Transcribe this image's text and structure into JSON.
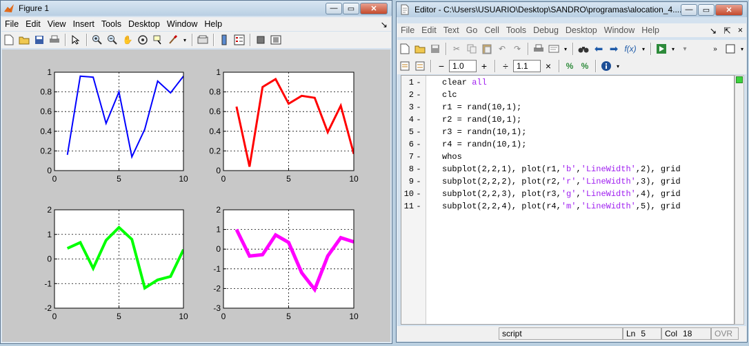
{
  "figure": {
    "title": "Figure 1",
    "menu": [
      "File",
      "Edit",
      "View",
      "Insert",
      "Tools",
      "Desktop",
      "Window",
      "Help"
    ],
    "dock_arrow": "↘"
  },
  "editor": {
    "title": "Editor - C:\\Users\\USUARIO\\Desktop\\SANDRO\\programas\\alocation_4....",
    "menu": [
      "File",
      "Edit",
      "Text",
      "Go",
      "Cell",
      "Tools",
      "Debug",
      "Desktop",
      "Window",
      "Help"
    ],
    "dock_arrow": "↘",
    "cell_value_1": "1.0",
    "cell_value_2": "1.1",
    "minus": "−",
    "plus": "+",
    "divide": "÷",
    "times": "×",
    "status": {
      "type": "script",
      "ln_label": "Ln",
      "ln": "5",
      "col_label": "Col",
      "col": "18",
      "ovr": "OVR"
    },
    "lines": [
      [
        {
          "t": "clear "
        },
        {
          "t": "all",
          "c": "str"
        }
      ],
      [
        {
          "t": "clc"
        }
      ],
      [
        {
          "t": "r1 = rand(10,1);"
        }
      ],
      [
        {
          "t": "r2 = rand(10,1);"
        }
      ],
      [
        {
          "t": "r3 = randn(10,1);"
        }
      ],
      [
        {
          "t": "r4 = randn(10,1);"
        }
      ],
      [
        {
          "t": "whos"
        }
      ],
      [
        {
          "t": "subplot(2,2,1), plot(r1,"
        },
        {
          "t": "'b'",
          "c": "str"
        },
        {
          "t": ","
        },
        {
          "t": "'LineWidth'",
          "c": "str"
        },
        {
          "t": ",2), grid"
        }
      ],
      [
        {
          "t": "subplot(2,2,2), plot(r2,"
        },
        {
          "t": "'r'",
          "c": "str"
        },
        {
          "t": ","
        },
        {
          "t": "'LineWidth'",
          "c": "str"
        },
        {
          "t": ",3), grid"
        }
      ],
      [
        {
          "t": "subplot(2,2,3), plot(r3,"
        },
        {
          "t": "'g'",
          "c": "str"
        },
        {
          "t": ","
        },
        {
          "t": "'LineWidth'",
          "c": "str"
        },
        {
          "t": ",4), grid"
        }
      ],
      [
        {
          "t": "subplot(2,2,4), plot(r4,"
        },
        {
          "t": "'m'",
          "c": "str"
        },
        {
          "t": ","
        },
        {
          "t": "'LineWidth'",
          "c": "str"
        },
        {
          "t": ",5), grid"
        }
      ]
    ]
  },
  "chart_data": [
    {
      "type": "line",
      "color": "#0000ff",
      "x": [
        1,
        2,
        3,
        4,
        5,
        6,
        7,
        8,
        9,
        10
      ],
      "values": [
        0.16,
        0.96,
        0.95,
        0.48,
        0.8,
        0.14,
        0.42,
        0.91,
        0.79,
        0.96
      ],
      "xlim": [
        0,
        10
      ],
      "ylim": [
        0,
        1
      ],
      "xticks": [
        "0",
        "5",
        "10"
      ],
      "yticks": [
        "0",
        "0.2",
        "0.4",
        "0.6",
        "0.8",
        "1"
      ],
      "grid": true,
      "linewidth": 2
    },
    {
      "type": "line",
      "color": "#ff0000",
      "x": [
        1,
        2,
        3,
        4,
        5,
        6,
        7,
        8,
        9,
        10
      ],
      "values": [
        0.65,
        0.04,
        0.85,
        0.93,
        0.68,
        0.76,
        0.74,
        0.39,
        0.66,
        0.17
      ],
      "xlim": [
        0,
        10
      ],
      "ylim": [
        0,
        1
      ],
      "xticks": [
        "0",
        "5",
        "10"
      ],
      "yticks": [
        "0",
        "0.2",
        "0.4",
        "0.6",
        "0.8",
        "1"
      ],
      "grid": true,
      "linewidth": 3
    },
    {
      "type": "line",
      "color": "#00ff00",
      "x": [
        1,
        2,
        3,
        4,
        5,
        6,
        7,
        8,
        9,
        10
      ],
      "values": [
        0.43,
        0.67,
        -0.38,
        0.76,
        1.28,
        0.8,
        -1.18,
        -0.85,
        -0.71,
        0.38
      ],
      "xlim": [
        0,
        10
      ],
      "ylim": [
        -2,
        2
      ],
      "xticks": [
        "0",
        "5",
        "10"
      ],
      "yticks": [
        "-2",
        "-1",
        "0",
        "1",
        "2"
      ],
      "grid": true,
      "linewidth": 4
    },
    {
      "type": "line",
      "color": "#ff00ff",
      "x": [
        1,
        2,
        3,
        4,
        5,
        6,
        7,
        8,
        9,
        10
      ],
      "values": [
        1.0,
        -0.35,
        -0.28,
        0.72,
        0.34,
        -1.2,
        -2.05,
        -0.35,
        0.58,
        0.37
      ],
      "xlim": [
        0,
        10
      ],
      "ylim": [
        -3,
        2
      ],
      "xticks": [
        "0",
        "5",
        "10"
      ],
      "yticks": [
        "-3",
        "-2",
        "-1",
        "0",
        "1",
        "2"
      ],
      "grid": true,
      "linewidth": 5
    }
  ]
}
